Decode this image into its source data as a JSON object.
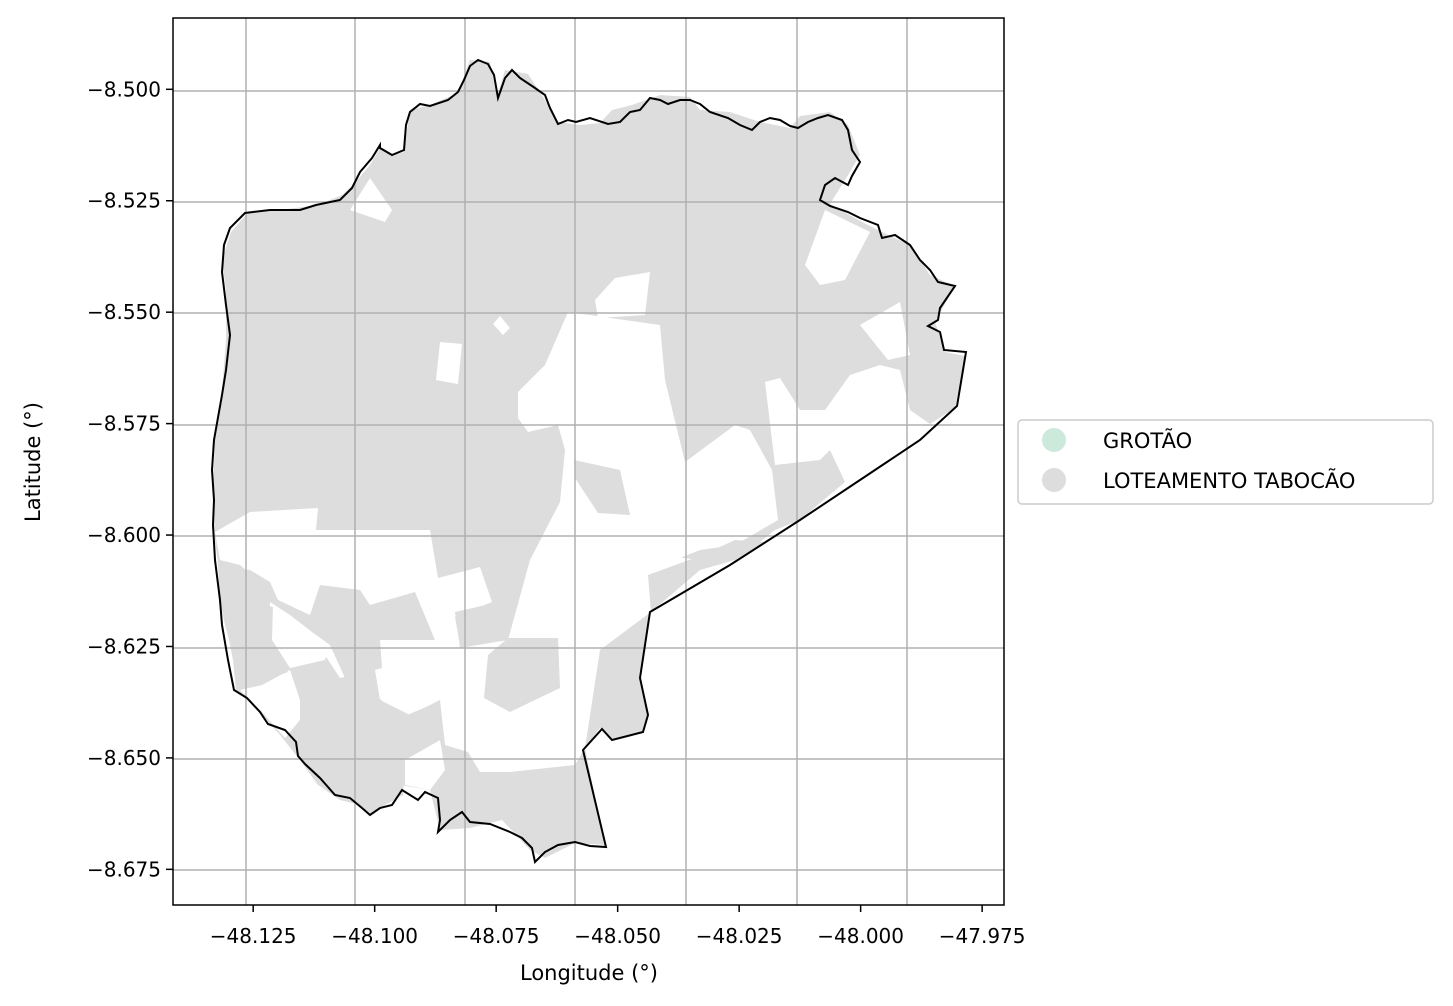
{
  "chart_data": {
    "type": "map",
    "xlabel": "Longitude (°)",
    "ylabel": "Latitude (°)",
    "xlim": [
      -48.1415,
      -47.9705
    ],
    "ylim": [
      -8.683,
      -8.484
    ],
    "x_ticks": [
      -48.125,
      -48.1,
      -48.075,
      -48.05,
      -48.025,
      -48.0,
      -47.975
    ],
    "x_tick_labels": [
      "−48.125",
      "−48.100",
      "−48.075",
      "−48.050",
      "−48.025",
      "−48.000",
      "−47.975"
    ],
    "y_ticks": [
      -8.5,
      -8.525,
      -8.55,
      -8.575,
      -8.6,
      -8.625,
      -8.65,
      -8.675
    ],
    "y_tick_labels": [
      "−8.500",
      "−8.525",
      "−8.550",
      "−8.575",
      "−8.600",
      "−8.625",
      "−8.650",
      "−8.675"
    ],
    "grid": true,
    "legend_placement": "outside-right",
    "legend": [
      {
        "label": "GROTÃO",
        "color": "#cde9dc"
      },
      {
        "label": "LOTEAMENTO TABOCÃO",
        "color": "#dddddd"
      }
    ],
    "fill_color": "#dddddd",
    "boundary_color": "#000000"
  }
}
